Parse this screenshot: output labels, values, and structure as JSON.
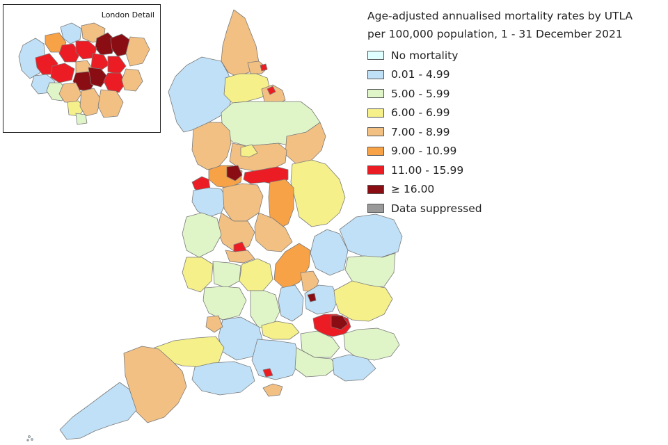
{
  "legend": {
    "title_line1": "Age-adjusted annualised mortality rates by UTLA",
    "title_line2": "per 100,000 population, 1 - 31 December 2021",
    "items": [
      {
        "label": "No mortality",
        "color": "#e0ffff",
        "key": "none"
      },
      {
        "label": "0.01 - 4.99",
        "color": "#bfe0f6",
        "key": "c1"
      },
      {
        "label": "5.00 - 5.99",
        "color": "#dff5c8",
        "key": "c2"
      },
      {
        "label": "6.00 - 6.99",
        "color": "#f5f08a",
        "key": "c3"
      },
      {
        "label": "7.00 - 8.99",
        "color": "#f2c083",
        "key": "c4"
      },
      {
        "label": "9.00 - 10.99",
        "color": "#f7a247",
        "key": "c5"
      },
      {
        "label": "11.00 - 15.99",
        "color": "#ec1c24",
        "key": "c6"
      },
      {
        "label": "≥ 16.00",
        "color": "#8b0d14",
        "key": "c7"
      },
      {
        "label": "Data suppressed",
        "color": "#999999",
        "key": "sup"
      }
    ]
  },
  "inset": {
    "title": "London Detail"
  }
}
